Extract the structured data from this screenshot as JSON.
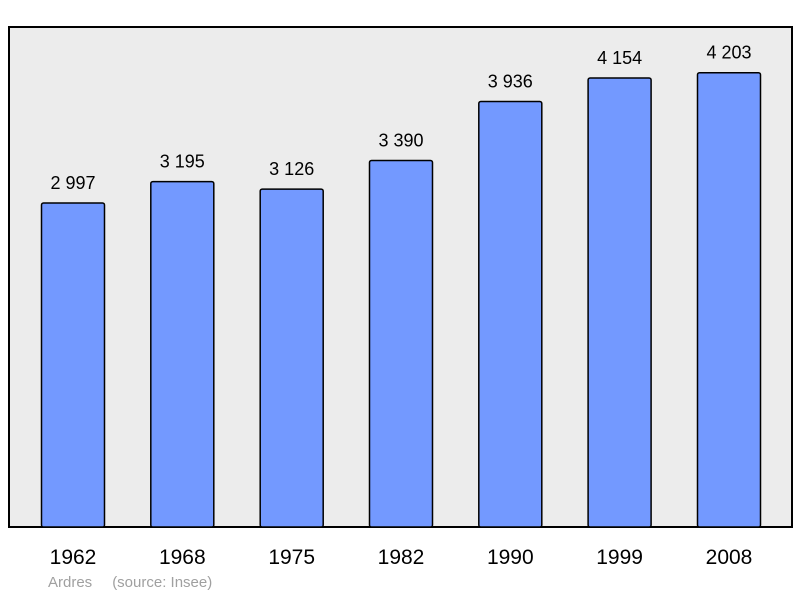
{
  "chart_data": {
    "type": "bar",
    "categories": [
      "1962",
      "1968",
      "1975",
      "1982",
      "1990",
      "1999",
      "2008"
    ],
    "values": [
      2997,
      3195,
      3126,
      3390,
      3936,
      4154,
      4203
    ],
    "value_labels": [
      "2 997",
      "3 195",
      "3 126",
      "3 390",
      "3 936",
      "4 154",
      "4 203"
    ],
    "ylim": [
      0,
      4650
    ],
    "grid": false,
    "colors": {
      "bar_fill": "#7399ff",
      "bar_stroke": "#000000",
      "plot_background": "#ececec",
      "frame": "#000000"
    }
  },
  "caption": {
    "place": "Ardres",
    "source": "(source: Insee)"
  }
}
